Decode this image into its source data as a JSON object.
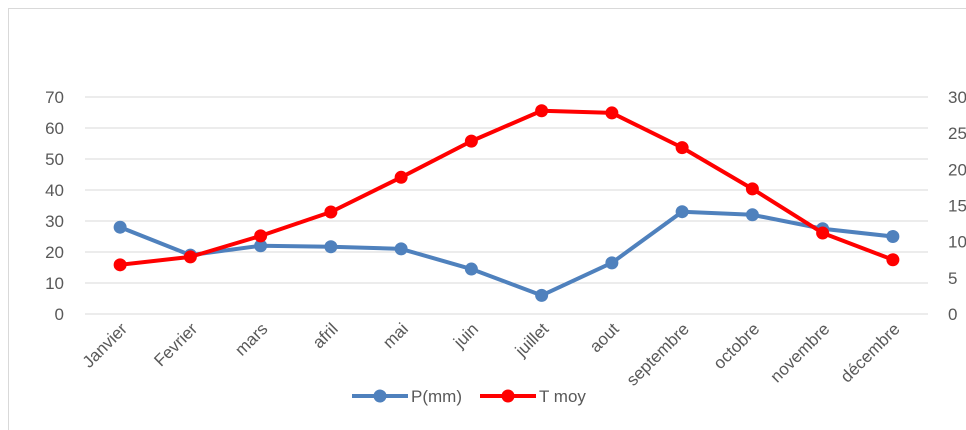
{
  "chart_data": {
    "type": "line",
    "categories": [
      "Janvier",
      "Fevrier",
      "mars",
      "afril",
      "mai",
      "juin",
      "juillet",
      "aout",
      "septembre",
      "octobre",
      "novembre",
      "décembre"
    ],
    "series": [
      {
        "name": "P(mm)",
        "color": "#4f81bd",
        "values": [
          28,
          19,
          22,
          21.7,
          21,
          14.5,
          6,
          16.5,
          33,
          32,
          27.5,
          25
        ]
      },
      {
        "name": "T moy",
        "color": "#ff0000",
        "axis": "y2",
        "values": [
          6.8,
          7.9,
          10.8,
          14.1,
          18.9,
          23.9,
          28.1,
          27.8,
          23,
          17.3,
          11.2,
          7.5
        ]
      }
    ],
    "ylim": [
      0,
      70
    ],
    "yticks": [
      0,
      10,
      20,
      30,
      40,
      50,
      60,
      70
    ],
    "y2lim": [
      0,
      30
    ],
    "y2ticks": [
      0,
      5,
      10,
      15,
      20,
      25,
      30
    ],
    "grid": true,
    "legend": "bottom"
  }
}
